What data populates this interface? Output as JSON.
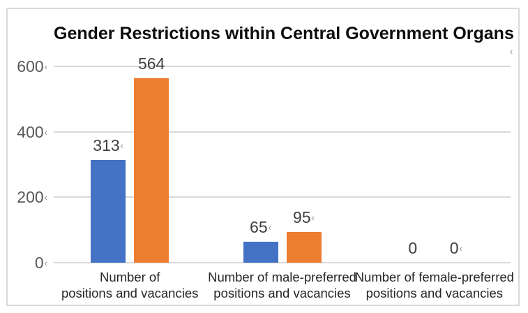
{
  "window": {
    "background": "#ffffff",
    "frame_border_color": "#d9d9d9"
  },
  "chart_data": {
    "type": "bar",
    "title": "Gender Restrictions within Central Government Organs",
    "categories": [
      {
        "lines": [
          "Number of",
          "positions and vacancies"
        ]
      },
      {
        "lines": [
          "Number of male-preferred",
          "positions and vacancies"
        ]
      },
      {
        "lines": [
          "Number of female-preferred",
          "positions and vacancies"
        ]
      }
    ],
    "series": [
      {
        "color": "#4472C4",
        "values": [
          313,
          65,
          0
        ],
        "data_labels": [
          {
            "text": "313",
            "mark": true
          },
          {
            "text": "65",
            "mark": true
          },
          {
            "text": "0",
            "mark": false
          }
        ]
      },
      {
        "color": "#ED7D31",
        "values": [
          564,
          95,
          0
        ],
        "data_labels": [
          {
            "text": "564",
            "mark": false
          },
          {
            "text": "95",
            "mark": true
          },
          {
            "text": "0",
            "mark": true
          }
        ]
      }
    ],
    "ylim": [
      0,
      600
    ],
    "yticks": [
      {
        "value": 0,
        "label": "0",
        "mark": true
      },
      {
        "value": 200,
        "label": "200",
        "mark": true
      },
      {
        "value": 400,
        "label": "400",
        "mark": true
      },
      {
        "value": 600,
        "label": "600",
        "mark": true
      }
    ],
    "grid": true,
    "legend": "none",
    "colors": {
      "gridline": "#d9d9d9",
      "axis_line": "#d9d9d9",
      "data_label": "#404040",
      "ytick_label": "#595959",
      "category_label": "#262626",
      "title": "#0d0d0d"
    },
    "mark_glyph": "‹",
    "stray_mark": "‹"
  }
}
